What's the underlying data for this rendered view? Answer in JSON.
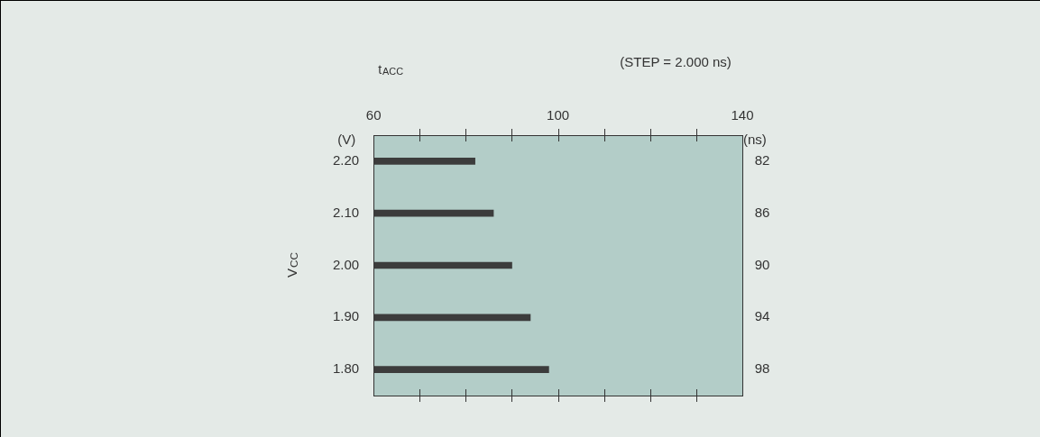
{
  "chart_data": {
    "type": "bar",
    "orientation": "horizontal",
    "title": "t$_{ACC}$",
    "ylabel": "V$_{CC}$",
    "annotations": [
      "(STEP = 2.000 ns)",
      "(V)",
      "(ns)"
    ],
    "categories": [
      "2.20",
      "2.10",
      "2.00",
      "1.90",
      "1.80"
    ],
    "values": [
      82,
      86,
      90,
      94,
      98
    ],
    "color": "#3c3c3c",
    "data_labels": true,
    "grid": false,
    "xlim": [
      60,
      140
    ],
    "xticks": [
      60,
      {
        "value": 70,
        "label": null
      },
      {
        "value": 80,
        "label": null
      },
      {
        "value": 90,
        "label": null
      },
      100,
      {
        "value": 110,
        "label": null
      },
      {
        "value": 120,
        "label": null
      },
      {
        "value": 130,
        "label": null
      },
      140
    ]
  }
}
